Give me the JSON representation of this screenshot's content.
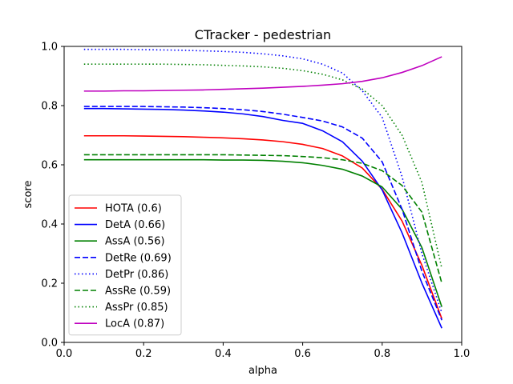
{
  "chart_data": {
    "type": "line",
    "title": "CTracker - pedestrian",
    "xlabel": "alpha",
    "ylabel": "score",
    "xlim": [
      0.0,
      1.0
    ],
    "ylim": [
      0.0,
      1.0
    ],
    "xticks": [
      "0.0",
      "0.2",
      "0.4",
      "0.6",
      "0.8",
      "1.0"
    ],
    "yticks": [
      "0.0",
      "0.2",
      "0.4",
      "0.6",
      "0.8",
      "1.0"
    ],
    "grid": false,
    "legend_position": "lower-left",
    "x": [
      0.05,
      0.1,
      0.15,
      0.2,
      0.25,
      0.3,
      0.35,
      0.4,
      0.45,
      0.5,
      0.55,
      0.6,
      0.65,
      0.7,
      0.75,
      0.8,
      0.85,
      0.9,
      0.95
    ],
    "series": [
      {
        "name": "HOTA (0.6)",
        "color": "#ff0000",
        "dash": "solid",
        "values": [
          0.698,
          0.698,
          0.698,
          0.697,
          0.696,
          0.695,
          0.693,
          0.691,
          0.688,
          0.684,
          0.678,
          0.669,
          0.655,
          0.63,
          0.589,
          0.517,
          0.41,
          0.26,
          0.08
        ]
      },
      {
        "name": "DetA (0.66)",
        "color": "#0000ff",
        "dash": "solid",
        "values": [
          0.79,
          0.79,
          0.789,
          0.788,
          0.787,
          0.785,
          0.782,
          0.778,
          0.772,
          0.763,
          0.75,
          0.74,
          0.715,
          0.678,
          0.612,
          0.515,
          0.37,
          0.2,
          0.048
        ]
      },
      {
        "name": "AssA (0.56)",
        "color": "#008000",
        "dash": "solid",
        "values": [
          0.617,
          0.617,
          0.617,
          0.617,
          0.617,
          0.617,
          0.617,
          0.616,
          0.616,
          0.615,
          0.612,
          0.607,
          0.598,
          0.585,
          0.562,
          0.525,
          0.45,
          0.32,
          0.12
        ]
      },
      {
        "name": "DetRe (0.69)",
        "color": "#0000ff",
        "dash": "dashed",
        "values": [
          0.797,
          0.797,
          0.797,
          0.797,
          0.796,
          0.795,
          0.793,
          0.79,
          0.786,
          0.78,
          0.771,
          0.76,
          0.748,
          0.728,
          0.69,
          0.61,
          0.45,
          0.24,
          0.075
        ]
      },
      {
        "name": "DetPr (0.86)",
        "color": "#0000ff",
        "dash": "dotted",
        "values": [
          0.99,
          0.99,
          0.99,
          0.989,
          0.988,
          0.987,
          0.985,
          0.983,
          0.98,
          0.975,
          0.968,
          0.958,
          0.94,
          0.91,
          0.85,
          0.76,
          0.56,
          0.3,
          0.1
        ]
      },
      {
        "name": "AssRe (0.59)",
        "color": "#008000",
        "dash": "dashed",
        "values": [
          0.634,
          0.634,
          0.634,
          0.634,
          0.634,
          0.634,
          0.634,
          0.634,
          0.633,
          0.632,
          0.631,
          0.628,
          0.624,
          0.617,
          0.605,
          0.58,
          0.53,
          0.44,
          0.2
        ]
      },
      {
        "name": "AssPr (0.85)",
        "color": "#008000",
        "dash": "dotted",
        "values": [
          0.94,
          0.94,
          0.94,
          0.94,
          0.94,
          0.939,
          0.938,
          0.936,
          0.934,
          0.931,
          0.926,
          0.918,
          0.906,
          0.887,
          0.856,
          0.8,
          0.7,
          0.54,
          0.25
        ]
      },
      {
        "name": "LocA (0.87)",
        "color": "#bf00bf",
        "dash": "solid",
        "values": [
          0.849,
          0.849,
          0.85,
          0.85,
          0.851,
          0.852,
          0.853,
          0.855,
          0.857,
          0.859,
          0.862,
          0.865,
          0.869,
          0.874,
          0.882,
          0.894,
          0.912,
          0.935,
          0.965
        ]
      }
    ]
  }
}
